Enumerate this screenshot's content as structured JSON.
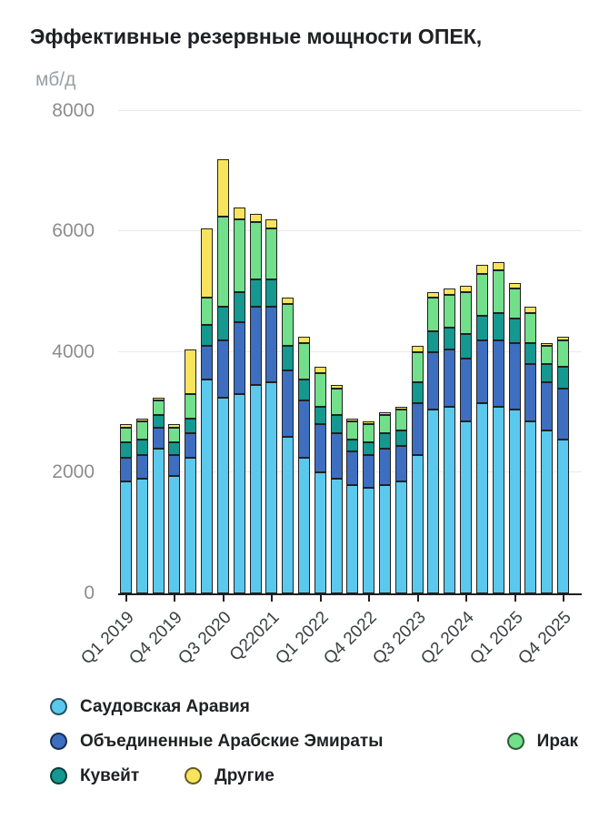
{
  "title": "Эффективные резервные мощности ОПЕК,",
  "units_label": "мб/д",
  "chart_data": {
    "type": "bar",
    "stacked": true,
    "title": "Эффективные резервные мощности ОПЕК, мб/д",
    "ylabel": "мб/д",
    "ylim": [
      0,
      8000
    ],
    "yticks": [
      0,
      2000,
      4000,
      6000,
      8000
    ],
    "grid": true,
    "legend_position": "bottom",
    "categories": [
      "Q1 2019",
      "Q2 2019",
      "Q3 2019",
      "Q4 2019",
      "Q1 2020",
      "Q2 2020",
      "Q3 2020",
      "Q4 2020",
      "Q1 2021",
      "Q2 2021",
      "Q3 2021",
      "Q4 2021",
      "Q1 2022",
      "Q2 2022",
      "Q3 2022",
      "Q4 2022",
      "Q1 2023",
      "Q2 2023",
      "Q3 2023",
      "Q4 2023",
      "Q1 2024",
      "Q2 2024",
      "Q3 2024",
      "Q4 2024",
      "Q1 2025",
      "Q2 2025",
      "Q3 2025",
      "Q4 2025"
    ],
    "x_tick_indices": [
      0,
      3,
      6,
      9,
      12,
      15,
      18,
      21,
      24,
      27
    ],
    "x_tick_labels": [
      "Q1 2019",
      "Q4 2019",
      "Q3 2020",
      "Q22021",
      "Q1 2022",
      "Q4 2022",
      "Q3 2023",
      "Q2 2024",
      "Q1 2025",
      "Q4 2025"
    ],
    "series": [
      {
        "id": "saudi-arabia",
        "name": "Саудовская Аравия",
        "color": "#5BC9EE",
        "values": [
          1850,
          1900,
          2400,
          1950,
          2250,
          3550,
          3250,
          3300,
          3450,
          3500,
          2600,
          2250,
          2000,
          1900,
          1800,
          1750,
          1800,
          1850,
          2300,
          3050,
          3100,
          2850,
          3150,
          3100,
          3050,
          2850,
          2700,
          2550
        ]
      },
      {
        "id": "uae",
        "name": "Объединенные Арабские Эмираты",
        "color": "#3E6EC0",
        "values": [
          400,
          400,
          350,
          350,
          400,
          550,
          950,
          1200,
          1300,
          1250,
          1100,
          950,
          800,
          750,
          550,
          550,
          600,
          600,
          850,
          950,
          950,
          1050,
          1050,
          1100,
          1100,
          950,
          800,
          850
        ]
      },
      {
        "id": "kuwait",
        "name": "Кувейт",
        "color": "#149890",
        "values": [
          250,
          250,
          200,
          200,
          250,
          350,
          550,
          500,
          450,
          450,
          400,
          350,
          300,
          300,
          200,
          200,
          250,
          250,
          350,
          350,
          350,
          400,
          400,
          450,
          400,
          350,
          300,
          350
        ]
      },
      {
        "id": "iraq",
        "name": "Ирак",
        "color": "#72DF8A",
        "values": [
          250,
          300,
          250,
          250,
          400,
          450,
          1500,
          1200,
          950,
          850,
          700,
          600,
          550,
          450,
          300,
          300,
          300,
          350,
          500,
          550,
          550,
          700,
          700,
          700,
          500,
          500,
          300,
          450
        ]
      },
      {
        "id": "other",
        "name": "Другие",
        "color": "#F8E45C",
        "values": [
          50,
          50,
          50,
          50,
          750,
          1150,
          950,
          200,
          150,
          150,
          100,
          100,
          100,
          50,
          50,
          50,
          50,
          50,
          100,
          100,
          100,
          100,
          150,
          150,
          100,
          100,
          50,
          50
        ]
      }
    ],
    "totals": [
      2800,
      2900,
      3250,
      2800,
      4050,
      6050,
      7200,
      6400,
      6300,
      6200,
      4900,
      4250,
      3750,
      3450,
      2900,
      2850,
      3000,
      3100,
      4100,
      5000,
      5050,
      5100,
      5450,
      5500,
      5150,
      4750,
      4150,
      4250
    ]
  },
  "legend": {
    "rows": [
      [
        "Саудовская Аравия"
      ],
      [
        "Объединенные Арабские Эмираты",
        "Ирак"
      ],
      [
        "Кувейт",
        "Другие"
      ]
    ]
  }
}
